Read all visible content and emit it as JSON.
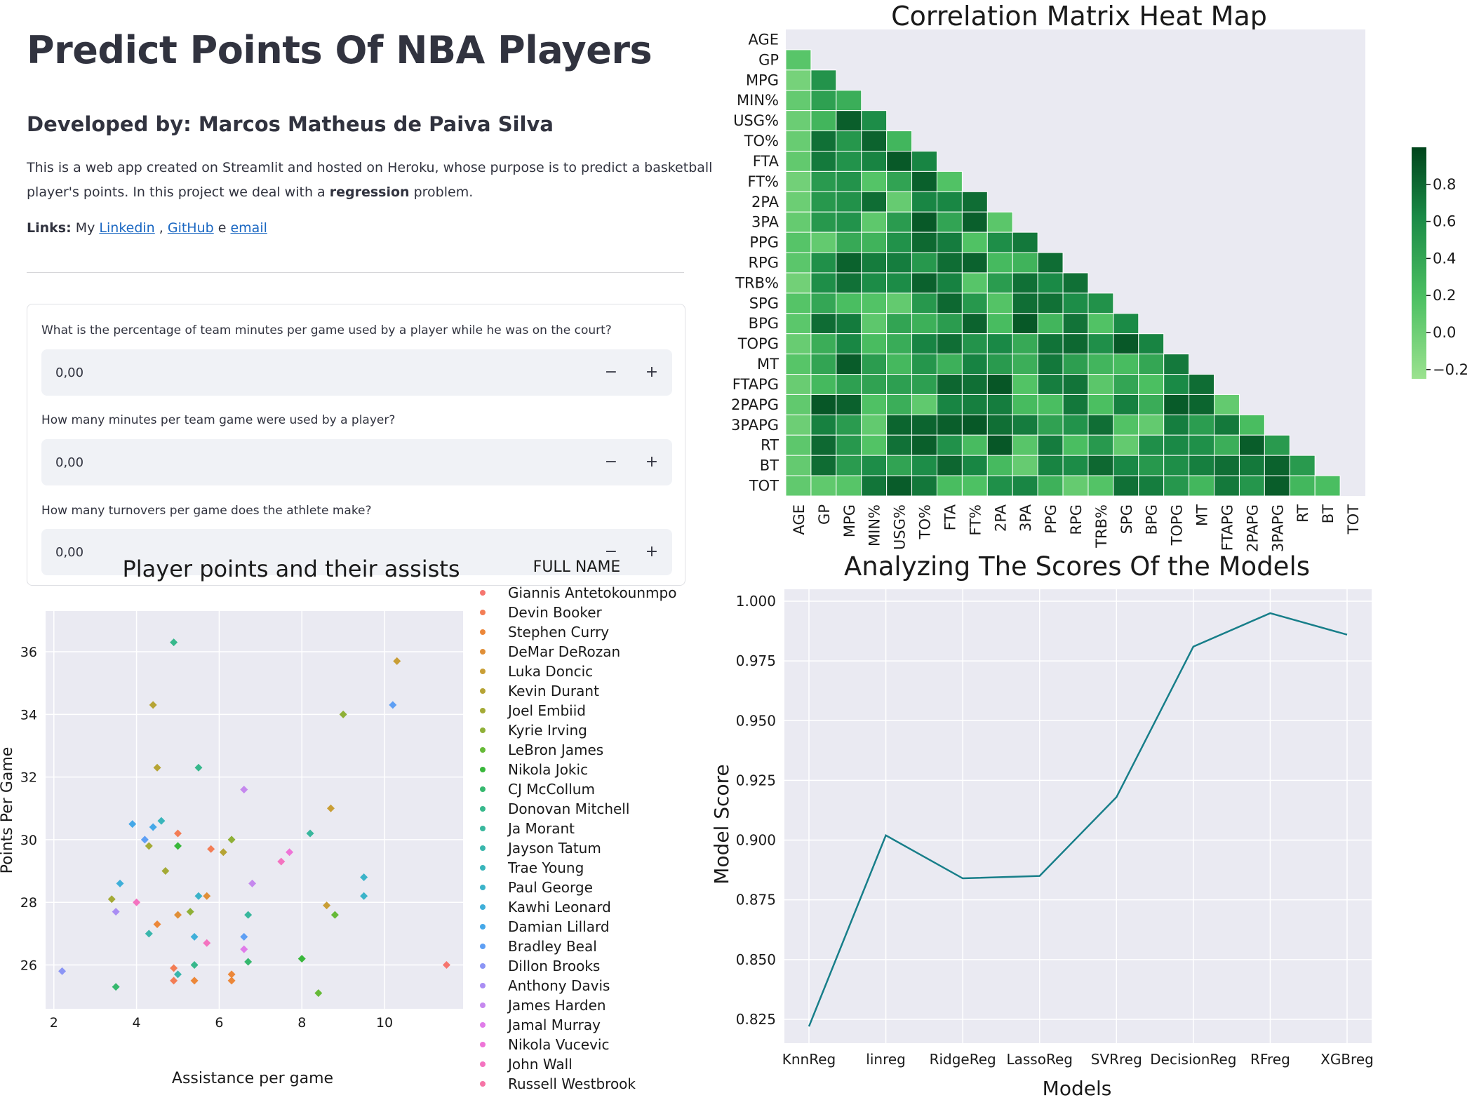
{
  "app": {
    "title": "Predict Points Of NBA Players",
    "subtitle": "Developed by: Marcos Matheus de Paiva Silva",
    "description_line1": "This is a web app created on Streamlit and hosted on Heroku, whose purpose is to predict a basketball",
    "description_line2_pre": "player's points. In this project we deal with a ",
    "description_bold": "regression",
    "description_line2_post": " problem.",
    "links_label": "Links:",
    "links_my": " My ",
    "link_linkedin": "Linkedin",
    "links_sep1": " , ",
    "link_github": "GitHub",
    "links_sep2": " e ",
    "link_email": "email",
    "questions": [
      {
        "label": "What is the percentage of team minutes per game used by a player while he was on the court?",
        "value": "0,00"
      },
      {
        "label": "How many minutes per team game were used by a player?",
        "value": "0,00"
      },
      {
        "label": "How many turnovers per game does the athlete make?",
        "value": "0,00"
      }
    ],
    "minus_label": "−",
    "plus_label": "+"
  },
  "colors": {
    "accent_link": "#1a67c2",
    "plot_bg": "#eaeaf2",
    "line_color": "#177e89",
    "heat_low": "#9be28f",
    "heat_high": "#00441b"
  },
  "chart_data": [
    {
      "type": "heatmap",
      "title": "Correlation Matrix Heat Map",
      "labels": [
        "AGE",
        "GP",
        "MPG",
        "MIN%",
        "USG%",
        "TO%",
        "FTA",
        "FT%",
        "2PA",
        "3PA",
        "PPG",
        "RPG",
        "TRB%",
        "SPG",
        "BPG",
        "TOPG",
        "MT",
        "FTAPG",
        "2PAPG",
        "3PAPG",
        "RT",
        "BT",
        "TOT"
      ],
      "mask": "lower-triangle",
      "colorbar_ticks": [
        "0.8",
        "0.6",
        "0.4",
        "0.2",
        "0.0",
        "−0.2"
      ],
      "colorbar_range": [
        -0.25,
        1.0
      ]
    },
    {
      "type": "scatter",
      "title": "Player points and their assists",
      "xlabel": "Assistance per game",
      "ylabel": "Points Per Game",
      "xlim": [
        1.8,
        11.9
      ],
      "ylim": [
        24.6,
        37.3
      ],
      "xticks": [
        2,
        4,
        6,
        8,
        10
      ],
      "yticks": [
        26,
        28,
        30,
        32,
        34,
        36
      ],
      "legend_title": "FULL NAME",
      "legend_placement": "outside-right",
      "legend": [
        "Giannis Antetokounmpo",
        "Devin Booker",
        "Stephen Curry",
        "DeMar DeRozan",
        "Luka Doncic",
        "Kevin Durant",
        "Joel Embiid",
        "Kyrie Irving",
        "LeBron James",
        "Nikola Jokic",
        "CJ McCollum",
        "Donovan Mitchell",
        "Ja Morant",
        "Jayson Tatum",
        "Trae Young",
        "Paul George",
        "Kawhi Leonard",
        "Damian Lillard",
        "Bradley Beal",
        "Dillon Brooks",
        "Anthony Davis",
        "James Harden",
        "Jamal Murray",
        "Nikola Vucevic",
        "John Wall",
        "Russell Westbrook"
      ],
      "legend_colors": [
        "#f6766f",
        "#f37d55",
        "#ec8739",
        "#e08f38",
        "#c99e35",
        "#b6a435",
        "#a4aa36",
        "#8fb037",
        "#66ba38",
        "#39b73b",
        "#36b86e",
        "#37b88c",
        "#38b79d",
        "#39b6ac",
        "#39b5bb",
        "#3bb3c9",
        "#3fafd9",
        "#45a8e8",
        "#5e9ff4",
        "#8b95f5",
        "#a98df3",
        "#c588ee",
        "#e07ce9",
        "#ee74d7",
        "#f473c0",
        "#f674a6"
      ],
      "points": [
        {
          "x": 11.5,
          "y": 26.0,
          "c": 0
        },
        {
          "x": 5.0,
          "y": 30.2,
          "c": 1
        },
        {
          "x": 5.8,
          "y": 29.7,
          "c": 1
        },
        {
          "x": 4.9,
          "y": 25.9,
          "c": 1
        },
        {
          "x": 4.9,
          "y": 25.5,
          "c": 1
        },
        {
          "x": 6.3,
          "y": 25.7,
          "c": 2
        },
        {
          "x": 6.3,
          "y": 25.5,
          "c": 2
        },
        {
          "x": 4.5,
          "y": 27.3,
          "c": 2
        },
        {
          "x": 5.4,
          "y": 25.5,
          "c": 2
        },
        {
          "x": 5.7,
          "y": 28.2,
          "c": 3
        },
        {
          "x": 5.0,
          "y": 27.6,
          "c": 3
        },
        {
          "x": 10.3,
          "y": 35.7,
          "c": 4
        },
        {
          "x": 8.7,
          "y": 31.0,
          "c": 4
        },
        {
          "x": 8.6,
          "y": 27.9,
          "c": 4
        },
        {
          "x": 4.4,
          "y": 34.3,
          "c": 5
        },
        {
          "x": 4.5,
          "y": 32.3,
          "c": 5
        },
        {
          "x": 6.1,
          "y": 29.6,
          "c": 5
        },
        {
          "x": 4.7,
          "y": 29.0,
          "c": 6
        },
        {
          "x": 4.3,
          "y": 29.8,
          "c": 6
        },
        {
          "x": 3.4,
          "y": 28.1,
          "c": 6
        },
        {
          "x": 9.0,
          "y": 34.0,
          "c": 7
        },
        {
          "x": 6.3,
          "y": 30.0,
          "c": 7
        },
        {
          "x": 5.3,
          "y": 27.7,
          "c": 7
        },
        {
          "x": 8.8,
          "y": 27.6,
          "c": 8
        },
        {
          "x": 8.4,
          "y": 25.1,
          "c": 8
        },
        {
          "x": 5.0,
          "y": 29.8,
          "c": 9
        },
        {
          "x": 8.0,
          "y": 26.2,
          "c": 9
        },
        {
          "x": 3.5,
          "y": 25.3,
          "c": 10
        },
        {
          "x": 6.7,
          "y": 26.1,
          "c": 10
        },
        {
          "x": 4.9,
          "y": 36.3,
          "c": 11
        },
        {
          "x": 5.5,
          "y": 32.3,
          "c": 11
        },
        {
          "x": 5.4,
          "y": 26.0,
          "c": 11
        },
        {
          "x": 8.2,
          "y": 30.2,
          "c": 12
        },
        {
          "x": 6.7,
          "y": 27.6,
          "c": 12
        },
        {
          "x": 5.0,
          "y": 25.7,
          "c": 13
        },
        {
          "x": 4.3,
          "y": 27.0,
          "c": 13
        },
        {
          "x": 4.6,
          "y": 30.6,
          "c": 14
        },
        {
          "x": 9.5,
          "y": 28.8,
          "c": 15
        },
        {
          "x": 9.5,
          "y": 28.2,
          "c": 15
        },
        {
          "x": 5.5,
          "y": 28.2,
          "c": 15
        },
        {
          "x": 3.6,
          "y": 28.6,
          "c": 16
        },
        {
          "x": 5.4,
          "y": 26.9,
          "c": 16
        },
        {
          "x": 3.9,
          "y": 30.5,
          "c": 17
        },
        {
          "x": 4.4,
          "y": 30.4,
          "c": 17
        },
        {
          "x": 10.2,
          "y": 34.3,
          "c": 18
        },
        {
          "x": 4.2,
          "y": 30.0,
          "c": 18
        },
        {
          "x": 6.6,
          "y": 26.9,
          "c": 18
        },
        {
          "x": 2.2,
          "y": 25.8,
          "c": 19
        },
        {
          "x": 3.5,
          "y": 27.7,
          "c": 20
        },
        {
          "x": 6.6,
          "y": 31.6,
          "c": 21
        },
        {
          "x": 6.8,
          "y": 28.6,
          "c": 21
        },
        {
          "x": 6.6,
          "y": 26.5,
          "c": 22
        },
        {
          "x": 7.7,
          "y": 29.6,
          "c": 23
        },
        {
          "x": 7.5,
          "y": 29.3,
          "c": 24
        },
        {
          "x": 4.0,
          "y": 28.0,
          "c": 24
        },
        {
          "x": 5.7,
          "y": 26.7,
          "c": 24
        }
      ]
    },
    {
      "type": "line",
      "title": "Analyzing The Scores Of the Models",
      "xlabel": "Models",
      "ylabel": "Model Score",
      "categories": [
        "KnnReg",
        "linreg",
        "RidgeReg",
        "LassoReg",
        "SVRreg",
        "DecisionReg",
        "RFreg",
        "XGBreg"
      ],
      "values": [
        0.822,
        0.902,
        0.884,
        0.885,
        0.918,
        0.981,
        0.995,
        0.986
      ],
      "ylim": [
        0.815,
        1.005
      ],
      "yticks": [
        "0.825",
        "0.850",
        "0.875",
        "0.900",
        "0.925",
        "0.950",
        "0.975",
        "1.000"
      ],
      "grid": true
    }
  ]
}
